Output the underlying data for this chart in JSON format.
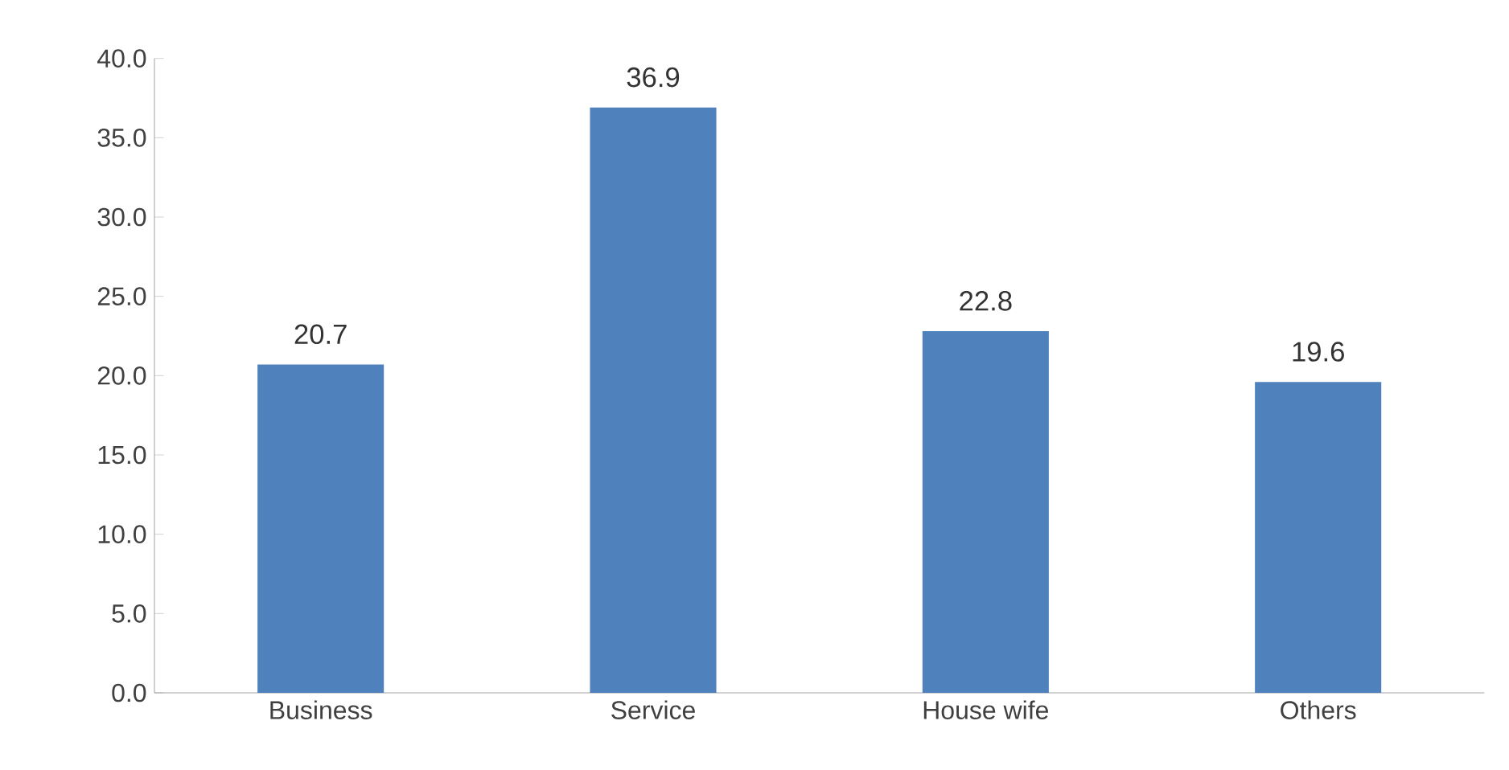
{
  "chart_data": {
    "type": "bar",
    "categories": [
      "Business",
      "Service",
      "House wife",
      "Others"
    ],
    "values": [
      20.7,
      36.9,
      22.8,
      19.6
    ],
    "color": "#4f81bd",
    "ylim": [
      0,
      40
    ],
    "yticks": [
      {
        "value": 0,
        "label": "0.0"
      },
      {
        "value": 5,
        "label": "5.0"
      },
      {
        "value": 10,
        "label": "10.0"
      },
      {
        "value": 15,
        "label": "15.0"
      },
      {
        "value": 20,
        "label": "20.0"
      },
      {
        "value": 25,
        "label": "25.0"
      },
      {
        "value": 30,
        "label": "30.0"
      },
      {
        "value": 35,
        "label": "35.0"
      },
      {
        "value": 40,
        "label": "40.0"
      }
    ],
    "data_labels": true
  }
}
